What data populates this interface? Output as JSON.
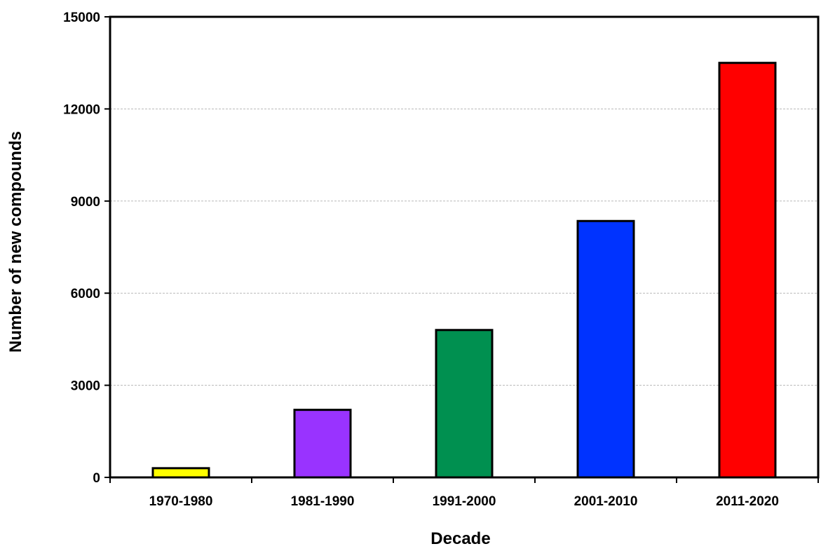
{
  "chart_data": {
    "type": "bar",
    "title": "",
    "xlabel": "Decade",
    "ylabel": "Number of new compounds",
    "categories": [
      "1970-1980",
      "1981-1990",
      "1991-2000",
      "2001-2010",
      "2011-2020"
    ],
    "values": [
      300,
      2200,
      4800,
      8350,
      13500
    ],
    "colors": [
      "#ffff00",
      "#9933ff",
      "#009050",
      "#0033ff",
      "#ff0000"
    ],
    "ylim": [
      0,
      15000
    ],
    "yticks": [
      "0",
      "3000",
      "6000",
      "9000",
      "12000",
      "15000"
    ],
    "grid": true,
    "legend": "none"
  }
}
